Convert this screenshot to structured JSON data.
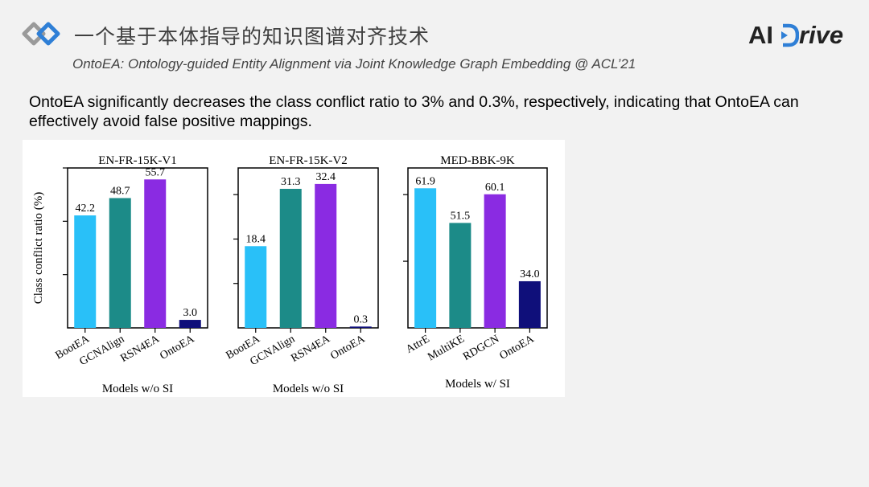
{
  "header": {
    "title": "一个基于本体指导的知识图谱对齐技术",
    "subtitle": "OntoEA: Ontology-guided Entity Alignment via Joint Knowledge Graph Embedding @ ACL’21",
    "brand_ai": "AI",
    "brand_rest": "rive"
  },
  "description": "OntoEA significantly decreases the class conflict ratio to 3% and 0.3%, respectively, indicating that OntoEA can effectively avoid false positive mappings.",
  "colors": {
    "light_blue": "#29c0f8",
    "teal": "#1c8b88",
    "purple": "#8a2be2",
    "navy": "#0f0f7a",
    "logo_blue": "#2f7fd6",
    "logo_gray": "#9a9a9a"
  },
  "chart_data": [
    {
      "type": "bar",
      "title": "EN-FR-15K-V1",
      "xlabel": "Models w/o SI",
      "ylabel": "Class conflict ratio (%)",
      "categories": [
        "BootEA",
        "GCNAlign",
        "RSN4EA",
        "OntoEA"
      ],
      "values": [
        42.2,
        48.7,
        55.7,
        3.0
      ],
      "labels": [
        "42.2",
        "48.7",
        "55.7",
        "3.0"
      ],
      "bar_colors": [
        "#29c0f8",
        "#1c8b88",
        "#8a2be2",
        "#0f0f7a"
      ],
      "ylim": [
        0,
        60
      ]
    },
    {
      "type": "bar",
      "title": "EN-FR-15K-V2",
      "xlabel": "Models w/o SI",
      "ylabel": "",
      "categories": [
        "BootEA",
        "GCNAlign",
        "RSN4EA",
        "OntoEA"
      ],
      "values": [
        18.4,
        31.3,
        32.4,
        0.3
      ],
      "labels": [
        "18.4",
        "31.3",
        "32.4",
        "0.3"
      ],
      "bar_colors": [
        "#29c0f8",
        "#1c8b88",
        "#8a2be2",
        "#0f0f7a"
      ],
      "ylim": [
        0,
        36
      ]
    },
    {
      "type": "bar",
      "title": "MED-BBK-9K",
      "xlabel": "Models w/ SI",
      "ylabel": "",
      "categories": [
        "AttrE",
        "MultiKE",
        "RDGCN",
        "OntoEA"
      ],
      "values": [
        61.9,
        51.5,
        60.1,
        34.0
      ],
      "labels": [
        "61.9",
        "51.5",
        "60.1",
        "34.0"
      ],
      "bar_colors": [
        "#29c0f8",
        "#1c8b88",
        "#8a2be2",
        "#0f0f7a"
      ],
      "ylim": [
        20,
        68
      ]
    }
  ]
}
